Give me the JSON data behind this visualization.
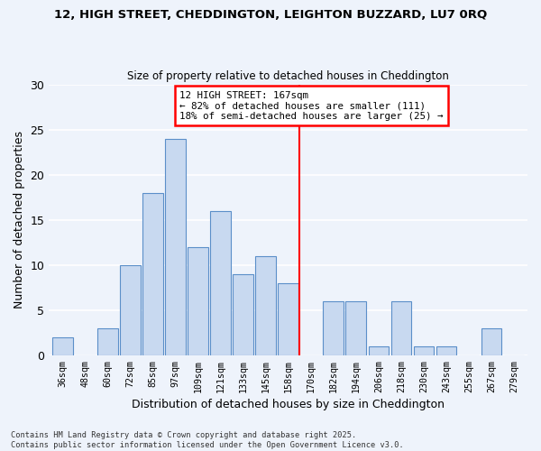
{
  "title1": "12, HIGH STREET, CHEDDINGTON, LEIGHTON BUZZARD, LU7 0RQ",
  "title2": "Size of property relative to detached houses in Cheddington",
  "xlabel": "Distribution of detached houses by size in Cheddington",
  "ylabel": "Number of detached properties",
  "bar_labels": [
    "36sqm",
    "48sqm",
    "60sqm",
    "72sqm",
    "85sqm",
    "97sqm",
    "109sqm",
    "121sqm",
    "133sqm",
    "145sqm",
    "158sqm",
    "170sqm",
    "182sqm",
    "194sqm",
    "206sqm",
    "218sqm",
    "230sqm",
    "243sqm",
    "255sqm",
    "267sqm",
    "279sqm"
  ],
  "bar_values": [
    2,
    0,
    3,
    10,
    18,
    24,
    12,
    16,
    9,
    11,
    8,
    0,
    6,
    6,
    1,
    6,
    1,
    1,
    0,
    3,
    0
  ],
  "bar_color": "#c8d9f0",
  "bar_edge_color": "#5b8fc9",
  "vline_color": "red",
  "vline_position": 10.5,
  "annotation_title": "12 HIGH STREET: 167sqm",
  "annotation_line1": "← 82% of detached houses are smaller (111)",
  "annotation_line2": "18% of semi-detached houses are larger (25) →",
  "annotation_box_color": "white",
  "annotation_box_edge": "red",
  "ylim": [
    0,
    30
  ],
  "yticks": [
    0,
    5,
    10,
    15,
    20,
    25,
    30
  ],
  "footnote1": "Contains HM Land Registry data © Crown copyright and database right 2025.",
  "footnote2": "Contains public sector information licensed under the Open Government Licence v3.0.",
  "bg_color": "#eef3fb",
  "grid_color": "white"
}
